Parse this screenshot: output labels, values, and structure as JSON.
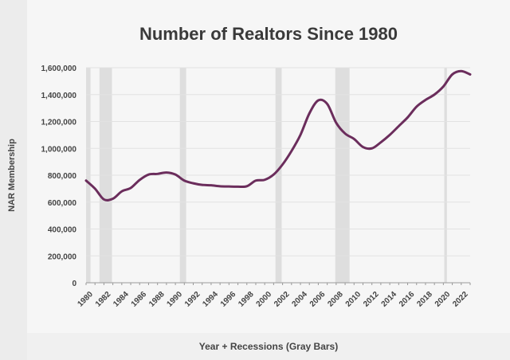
{
  "chart_data": {
    "type": "line",
    "title": "Number of Realtors Since 1980",
    "xlabel": "Year + Recessions (Gray Bars)",
    "ylabel": "NAR Membership",
    "ylim": [
      0,
      1600000
    ],
    "xlim": [
      1980,
      2023
    ],
    "yticks": [
      0,
      200000,
      400000,
      600000,
      800000,
      1000000,
      1200000,
      1400000,
      1600000
    ],
    "ytick_labels": [
      "0",
      "200,000",
      "400,000",
      "600,000",
      "800,000",
      "1,000,000",
      "1,200,000",
      "1,400,000",
      "1,600,000"
    ],
    "xtick_labels": [
      "1980",
      "1982",
      "1984",
      "1986",
      "1988",
      "1990",
      "1992",
      "1994",
      "1996",
      "1998",
      "2000",
      "2002",
      "2004",
      "2006",
      "2008",
      "2010",
      "2012",
      "2014",
      "2016",
      "2018",
      "2020",
      "2022"
    ],
    "grid": "horizontal",
    "line_color": "#6b2d5c",
    "recession_color": "#dedede",
    "x": [
      1980,
      1981,
      1982,
      1983,
      1984,
      1985,
      1986,
      1987,
      1988,
      1989,
      1990,
      1991,
      1992,
      1993,
      1994,
      1995,
      1996,
      1997,
      1998,
      1999,
      2000,
      2001,
      2002,
      2003,
      2004,
      2005,
      2006,
      2007,
      2008,
      2009,
      2010,
      2011,
      2012,
      2013,
      2014,
      2015,
      2016,
      2017,
      2018,
      2019,
      2020,
      2021,
      2022,
      2023
    ],
    "values": [
      760000,
      700000,
      620000,
      625000,
      680000,
      705000,
      765000,
      805000,
      810000,
      820000,
      805000,
      760000,
      740000,
      728000,
      725000,
      718000,
      716000,
      715000,
      718000,
      760000,
      766000,
      805000,
      880000,
      980000,
      1100000,
      1260000,
      1357000,
      1330000,
      1190000,
      1110000,
      1070000,
      1010000,
      1000000,
      1045000,
      1100000,
      1165000,
      1230000,
      1310000,
      1360000,
      1400000,
      1460000,
      1550000,
      1575000,
      1550000
    ],
    "recessions": [
      [
        1980.0,
        1980.5
      ],
      [
        1981.5,
        1982.9
      ],
      [
        1990.5,
        1991.2
      ],
      [
        2001.2,
        2001.9
      ],
      [
        2007.9,
        2009.5
      ],
      [
        2020.1,
        2020.4
      ]
    ]
  }
}
